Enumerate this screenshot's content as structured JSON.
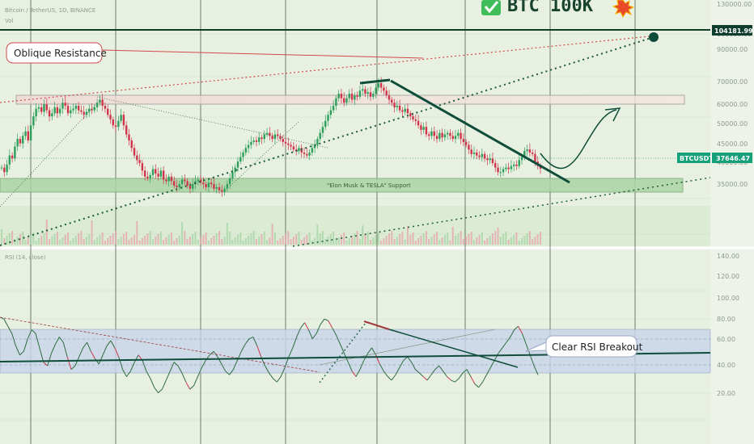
{
  "header": {
    "symbol": "Bitcoin / TetherUS, 1D, BINANCE",
    "vol_label": "Vol",
    "headline": "BTC 100K",
    "check_icon": "check-mark-icon",
    "burst_icon": "explosion-icon"
  },
  "annotations": {
    "oblique_resistance": "Oblique Resistance",
    "support_zone": "\"Elon Musk & TESLA\" Support",
    "rsi_breakout": "Clear RSI Breakout"
  },
  "badges": {
    "target_price": "104181.99",
    "symbol_tag": "BTCUSDT",
    "last_price": "37646.47"
  },
  "rsi_pane": {
    "title": "RSI (14, close)"
  },
  "colors": {
    "background": "#e9f2e3",
    "grid": "#1f2a1f",
    "up_candle": "#2e9e5b",
    "down_candle": "#d0334a",
    "rsi_line": "#2d6b3e",
    "trendline": "#0f4d3a",
    "resistance": "#d24a4a",
    "support_band": "#a9d3a3",
    "rsi_band": "#c7d4ea",
    "target_badge": "#0f3d2b",
    "price_badge": "#15a07a"
  },
  "chart_data": [
    {
      "type": "candlestick",
      "title": "Bitcoin / TetherUS, 1D, BINANCE",
      "y_ticks": [
        "130000.00",
        "100000.00",
        "90000.00",
        "70000.00",
        "60000.00",
        "50000.00",
        "45000.00",
        "40000.00",
        "35000.00"
      ],
      "closes": [
        38000,
        36500,
        39000,
        42000,
        41000,
        45000,
        47500,
        46000,
        48500,
        50000,
        47000,
        52000,
        55000,
        57500,
        58000,
        56500,
        59000,
        57000,
        55000,
        56000,
        58000,
        56000,
        57500,
        59500,
        58500,
        56000,
        57000,
        57500,
        58500,
        57000,
        56500,
        55500,
        56500,
        57500,
        57000,
        58000,
        59500,
        60500,
        58500,
        57500,
        55500,
        54000,
        52000,
        51500,
        53500,
        55500,
        52000,
        49000,
        47000,
        44500,
        42000,
        40500,
        39500,
        37000,
        35000,
        34500,
        35500,
        37500,
        36000,
        35000,
        37000,
        34000,
        33500,
        35000,
        33500,
        32000,
        31500,
        32500,
        34000,
        33500,
        32000,
        31000,
        32500,
        33500,
        34000,
        33000,
        32500,
        31500,
        33000,
        32500,
        31000,
        31500,
        30500,
        30000,
        31000,
        32500,
        34500,
        36500,
        38000,
        40000,
        41500,
        43000,
        44500,
        45500,
        46500,
        47000,
        46500,
        48000,
        47500,
        49000,
        49500,
        48500,
        47500,
        49000,
        48500,
        47500,
        46500,
        46000,
        45500,
        45000,
        44000,
        43500,
        44500,
        43000,
        42500,
        42000,
        43000,
        44500,
        45500,
        47500,
        49500,
        51500,
        53500,
        55500,
        57000,
        58500,
        61000,
        62500,
        61000,
        59500,
        61000,
        62500,
        60500,
        62000,
        61500,
        63500,
        64000,
        62500,
        63000,
        61500,
        62500,
        64500,
        66000,
        64500,
        63500,
        62000,
        60500,
        59500,
        58000,
        58500,
        57000,
        56500,
        57500,
        56000,
        55000,
        54000,
        53500,
        52000,
        50500,
        51500,
        49000,
        48500,
        50000,
        48500,
        47500,
        49500,
        48000,
        49000,
        49500,
        48500,
        47500,
        48500,
        49500,
        47500,
        46500,
        45500,
        44000,
        42500,
        43000,
        42000,
        41500,
        42500,
        41000,
        40500,
        41000,
        39500,
        38000,
        36500,
        36500,
        37500,
        38000,
        37500,
        38500,
        39000,
        38500,
        40500,
        41500,
        43500,
        44000,
        43000,
        42500,
        40000,
        38500,
        37646
      ],
      "resistance_line": {
        "from_index": 0,
        "to_index": 260,
        "label": "Oblique Resistance"
      },
      "support_zone_label": "\"Elon Musk & TESLA\" Support",
      "target_price": 104181.99,
      "last_price": 37646.47
    },
    {
      "type": "line",
      "title": "RSI (14, close)",
      "y_ticks": [
        "140.00",
        "120.00",
        "100.00",
        "80.00",
        "60.00",
        "40.00",
        "20.00"
      ],
      "values": [
        77,
        76,
        72,
        68,
        61,
        56,
        58,
        65,
        70,
        68,
        60,
        52,
        50,
        57,
        62,
        66,
        63,
        55,
        48,
        50,
        55,
        60,
        63,
        58,
        54,
        51,
        56,
        61,
        64,
        60,
        55,
        48,
        44,
        47,
        52,
        56,
        53,
        47,
        43,
        38,
        35,
        37,
        42,
        47,
        52,
        50,
        46,
        41,
        37,
        39,
        44,
        49,
        53,
        56,
        58,
        55,
        51,
        47,
        45,
        48,
        53,
        58,
        62,
        65,
        66,
        61,
        55,
        50,
        46,
        43,
        41,
        44,
        49,
        55,
        60,
        66,
        71,
        74,
        70,
        65,
        68,
        73,
        76,
        75,
        71,
        67,
        62,
        57,
        52,
        47,
        44,
        48,
        53,
        57,
        60,
        56,
        51,
        47,
        44,
        42,
        45,
        49,
        53,
        55,
        52,
        48,
        46,
        44,
        42,
        45,
        48,
        50,
        47,
        44,
        42,
        41,
        43,
        46,
        48,
        44,
        40,
        38,
        41,
        45,
        49,
        53,
        57,
        60,
        63,
        66,
        70,
        72,
        68,
        62,
        56,
        50,
        45
      ]
    }
  ]
}
